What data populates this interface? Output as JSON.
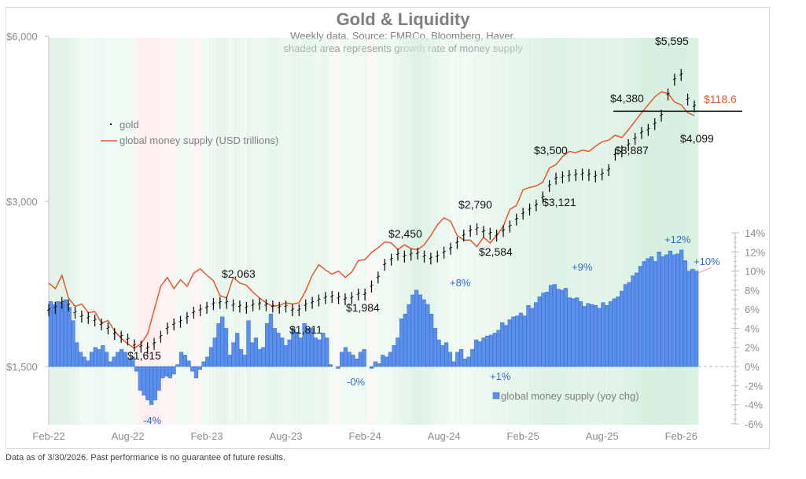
{
  "chart_data": {
    "type": "line",
    "title": "Gold & Liquidity",
    "subtitle_lines": [
      "Weekly data.  Source: FMRCo, Bloomberg, Haver.",
      "shaded area represents growth rate of money supply"
    ],
    "footnote": "Data as of 3/30/2026. Past performance is no guarantee of future results.",
    "x_ticks": [
      "Feb-22",
      "Aug-22",
      "Feb-23",
      "Aug-23",
      "Feb-24",
      "Aug-24",
      "Feb-25",
      "Aug-25",
      "Feb-26"
    ],
    "left_axis": {
      "ticks": [
        "$1,500",
        "$3,000",
        "$6,000"
      ],
      "values": [
        1500,
        3000,
        6000
      ],
      "scale": "log"
    },
    "right_axis": {
      "ticks": [
        "14%",
        "12%",
        "10%",
        "8%",
        "6%",
        "4%",
        "2%",
        "0%",
        "-2%",
        "-4%",
        "-6%"
      ],
      "ylim": [
        -6,
        14
      ]
    },
    "legend": [
      {
        "name": "gold",
        "marker": "ohlc-bar",
        "color": "#000000"
      },
      {
        "name": "global money supply (USD trillions)",
        "marker": "line",
        "color": "#e8572a"
      },
      {
        "name": "global money supply (yoy chg)",
        "marker": "bar",
        "color": "#5b8fe8"
      }
    ],
    "series": [
      {
        "name": "gold",
        "unit": "USD/oz",
        "x_months": [
          0,
          0.5,
          1,
          1.5,
          2,
          2.5,
          3,
          3.5,
          4,
          4.5,
          5,
          5.5,
          6,
          6.5,
          7,
          7.5,
          8,
          8.5,
          9,
          9.5,
          10,
          10.5,
          11,
          11.5,
          12,
          12.5,
          13,
          13.5,
          14,
          14.5,
          15,
          15.5,
          16,
          16.5,
          17,
          17.5,
          18,
          18.5,
          19,
          19.5,
          20,
          20.5,
          21,
          21.5,
          22,
          22.5,
          23,
          23.5,
          24,
          24.5,
          25,
          25.5,
          26,
          26.5,
          27,
          27.5,
          28,
          28.5,
          29,
          29.5,
          30,
          30.5,
          31,
          31.5,
          32,
          32.5,
          33,
          33.5,
          34,
          34.5,
          35,
          35.5,
          36,
          36.5,
          37,
          37.5,
          38,
          38.5,
          39,
          39.5,
          40,
          40.5,
          41,
          41.5,
          42,
          42.5,
          43,
          43.5,
          44,
          44.5,
          45,
          45.5,
          46,
          46.5,
          47,
          47.5,
          48,
          48.5,
          49
        ],
        "values": [
          1900,
          1920,
          1960,
          1940,
          1880,
          1850,
          1840,
          1820,
          1790,
          1760,
          1720,
          1700,
          1680,
          1640,
          1630,
          1620,
          1650,
          1700,
          1760,
          1790,
          1810,
          1840,
          1880,
          1900,
          1920,
          1950,
          1960,
          1960,
          1940,
          1930,
          1920,
          1940,
          1950,
          1940,
          1930,
          1920,
          1930,
          1900,
          1900,
          1940,
          1960,
          1980,
          2000,
          2010,
          2000,
          1990,
          2000,
          2030,
          2030,
          2100,
          2180,
          2300,
          2350,
          2400,
          2380,
          2400,
          2410,
          2380,
          2360,
          2380,
          2420,
          2460,
          2520,
          2600,
          2650,
          2670,
          2640,
          2620,
          2600,
          2650,
          2700,
          2780,
          2850,
          2900,
          2950,
          3050,
          3200,
          3300,
          3320,
          3340,
          3350,
          3360,
          3350,
          3330,
          3360,
          3420,
          3650,
          3700,
          3800,
          3900,
          4000,
          4050,
          4150,
          4300,
          4700,
          5000,
          5100,
          4600,
          4470
        ],
        "annotations": [
          "$1,615",
          "$2,063",
          "$1,811",
          "$1,984",
          "$2,450",
          "$2,790",
          "$2,584",
          "$3,500",
          "$3,121",
          "$3,887",
          "$4,380",
          "$5,595",
          "$4,099"
        ],
        "annotation_values": [
          1615,
          2063,
          1811,
          1984,
          2450,
          2790,
          2584,
          3500,
          3121,
          3887,
          4380,
          5595,
          4099
        ],
        "annotation_months": [
          7.5,
          11.5,
          19,
          23.5,
          26.5,
          32,
          34,
          38,
          40,
          43.5,
          44.5,
          47,
          48.3
        ],
        "reference_line": 4380
      },
      {
        "name": "global money supply (USD trillions)",
        "latest_label": "$118.6",
        "x_months": [
          0,
          0.5,
          1,
          1.5,
          2,
          2.5,
          3,
          3.5,
          4,
          4.5,
          5,
          5.5,
          6,
          6.5,
          7,
          7.5,
          8,
          8.5,
          9,
          9.5,
          10,
          10.5,
          11,
          11.5,
          12,
          12.5,
          13,
          13.5,
          14,
          14.5,
          15,
          15.5,
          16,
          16.5,
          17,
          17.5,
          18,
          18.5,
          19,
          19.5,
          20,
          20.5,
          21,
          21.5,
          22,
          22.5,
          23,
          23.5,
          24,
          24.5,
          25,
          25.5,
          26,
          26.5,
          27,
          27.5,
          28,
          28.5,
          29,
          29.5,
          30,
          30.5,
          31,
          31.5,
          32,
          32.5,
          33,
          33.5,
          34,
          34.5,
          35,
          35.5,
          36,
          36.5,
          37,
          37.5,
          38,
          38.5,
          39,
          39.5,
          40,
          40.5,
          41,
          41.5,
          42,
          42.5,
          43,
          43.5,
          44,
          44.5,
          45,
          45.5,
          46,
          46.5,
          47,
          47.5,
          48,
          48.5,
          49
        ],
        "values_as_gold_scale": [
          2130,
          2080,
          2200,
          2000,
          1930,
          1950,
          1880,
          1890,
          1800,
          1820,
          1740,
          1690,
          1650,
          1620,
          1650,
          1720,
          1900,
          2100,
          2180,
          2080,
          2160,
          2100,
          2220,
          2260,
          2200,
          2150,
          2020,
          2000,
          2180,
          2130,
          2110,
          2050,
          2000,
          1960,
          1930,
          1940,
          1960,
          1950,
          1960,
          2060,
          2200,
          2300,
          2250,
          2210,
          2240,
          2180,
          2230,
          2340,
          2350,
          2420,
          2470,
          2530,
          2520,
          2450,
          2500,
          2460,
          2450,
          2500,
          2600,
          2720,
          2800,
          2760,
          2600,
          2550,
          2550,
          2480,
          2580,
          2520,
          2600,
          2700,
          2900,
          2950,
          3150,
          3180,
          3200,
          3250,
          3450,
          3500,
          3620,
          3700,
          3680,
          3720,
          3700,
          3780,
          3850,
          3880,
          3960,
          3920,
          4050,
          4200,
          4350,
          4500,
          4650,
          4750,
          4720,
          4550,
          4500,
          4350,
          4300
        ]
      },
      {
        "name": "global money supply (yoy chg)",
        "unit": "%",
        "values": [
          6.8,
          6.5,
          6.8,
          6.7,
          7.0,
          6.2,
          4.8,
          2.5,
          1.5,
          1.0,
          0.6,
          1.5,
          2.0,
          1.8,
          2.2,
          1.5,
          0.5,
          1.0,
          1.5,
          1.8,
          1.5,
          0.8,
          1.0,
          -0.5,
          -2.5,
          -3.0,
          -3.5,
          -4.0,
          -3.5,
          -2.5,
          -1.2,
          -1.0,
          -1.2,
          -0.8,
          0.2,
          1.5,
          1.2,
          0.6,
          -0.5,
          -1.2,
          -0.3,
          0.5,
          1.0,
          2.0,
          3.0,
          4.5,
          5.2,
          4.0,
          1.2,
          2.5,
          3.5,
          1.8,
          1.2,
          4.8,
          2.5,
          3.0,
          1.8,
          2.0,
          4.5,
          5.5,
          4.0,
          3.5,
          3.0,
          2.2,
          2.8,
          4.0,
          3.6,
          3.0,
          4.5,
          4.0,
          4.0,
          3.0,
          2.8,
          3.5,
          3.0,
          0.2,
          0.0,
          -0.2,
          1.5,
          2.0,
          1.5,
          1.2,
          0.8,
          1.5,
          1.8,
          0.0,
          -0.2,
          0.5,
          0.3,
          1.2,
          1.0,
          1.5,
          2.2,
          3.0,
          5.0,
          5.5,
          6.5,
          7.5,
          8.0,
          7.5,
          7.0,
          6.5,
          5.5,
          4.0,
          2.8,
          2.2,
          2.5,
          1.5,
          0.5,
          1.5,
          1.8,
          0.8,
          1.0,
          1.8,
          2.8,
          2.6,
          3.0,
          3.2,
          3.3,
          3.5,
          3.8,
          4.6,
          4.3,
          4.9,
          5.2,
          5.3,
          5.6,
          5.3,
          6.4,
          6.1,
          6.7,
          7.3,
          7.7,
          7.8,
          8.5,
          8.6,
          8.1,
          8.0,
          8.2,
          7.2,
          7.1,
          7.2,
          6.8,
          6.3,
          6.6,
          6.5,
          6.4,
          6.1,
          6.7,
          6.4,
          6.8,
          7.1,
          7.3,
          7.9,
          8.6,
          8.8,
          9.5,
          9.8,
          10.5,
          11.0,
          11.3,
          11.5,
          11.0,
          12.0,
          11.5,
          11.7,
          12.1,
          11.7,
          11.8,
          12.2,
          11.1,
          10.0,
          10.2,
          10.0
        ],
        "annotations": [
          "-4%",
          "-0%",
          "+8%",
          "+1%",
          "+9%",
          "+12%",
          "+10%"
        ]
      }
    ],
    "shading": {
      "meaning": "growth rate of money supply",
      "positive_color": "#d6efdf",
      "negative_color": "#fde0de"
    },
    "colors": {
      "bars": "#5b8fe8",
      "bars_edge": "#2f6bd6",
      "money_line": "#e8572a",
      "gold": "#000000",
      "annotation_pct": "#2f6bd6",
      "latest_money_label": "#e8572a",
      "axis_text": "#8c8c8c"
    }
  }
}
